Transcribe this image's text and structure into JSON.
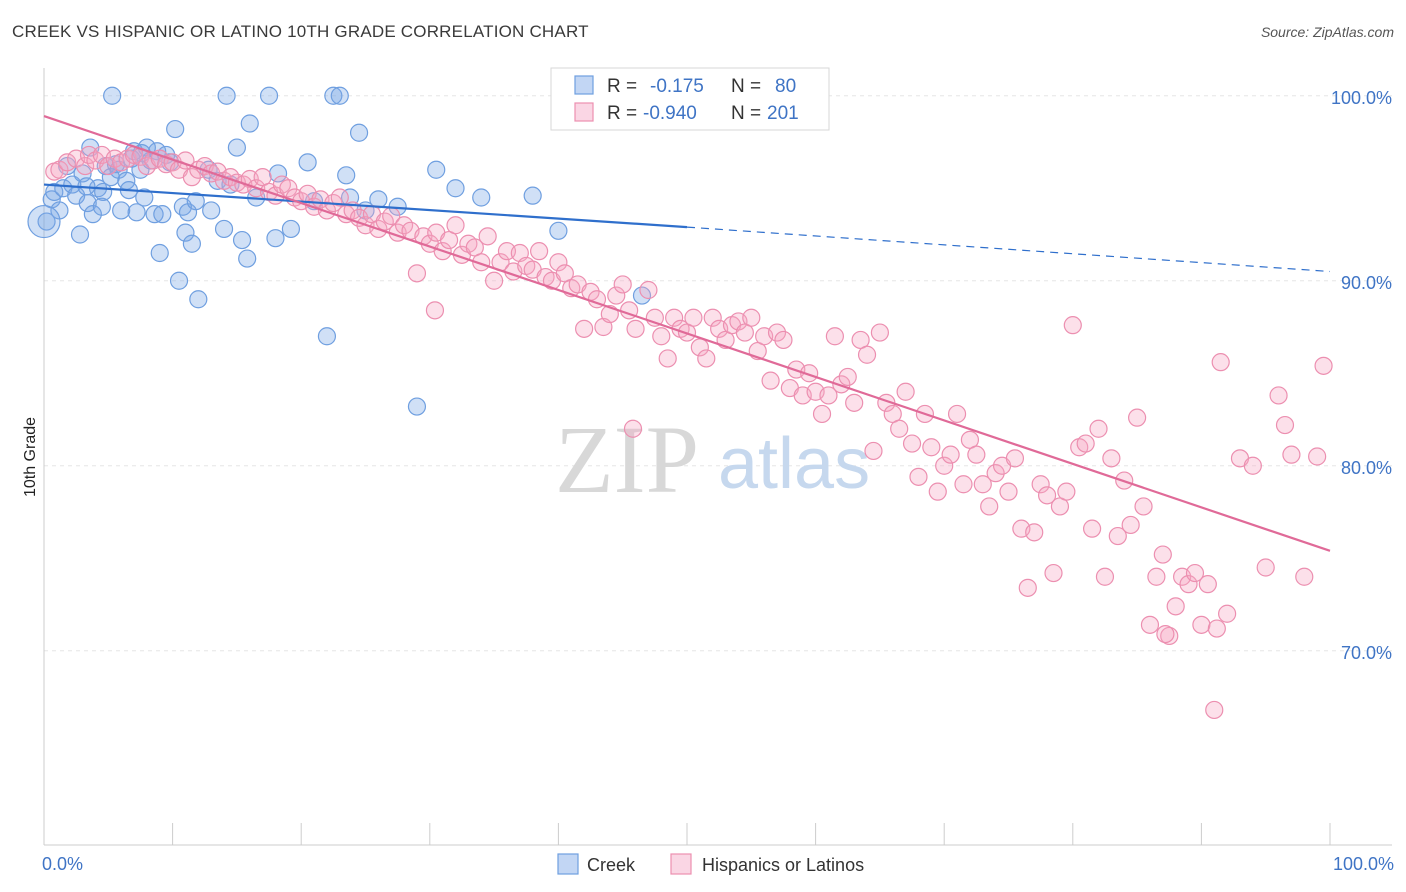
{
  "title": "CREEK VS HISPANIC OR LATINO 10TH GRADE CORRELATION CHART",
  "source": "Source: ZipAtlas.com",
  "watermark": {
    "zip": "ZIP",
    "atlas": "atlas"
  },
  "colors": {
    "creek": "#6f9fe0",
    "creek_fill": "rgba(120,165,230,0.35)",
    "creek_line": "#2f6fcc",
    "hispanic": "#ec8fb0",
    "hispanic_fill": "rgba(245,165,195,0.35)",
    "hispanic_line": "#e06a98",
    "tick_label": "#3f74c5"
  },
  "legend": {
    "rows": [
      {
        "r_label": "R =",
        "r_value": "-0.175",
        "n_label": "N =",
        "n_value": "80"
      },
      {
        "r_label": "R =",
        "r_value": "-0.940",
        "n_label": "N =",
        "n_value": "201"
      }
    ]
  },
  "chart_data": {
    "type": "scatter",
    "title": "CREEK VS HISPANIC OR LATINO 10TH GRADE CORRELATION CHART",
    "xlabel": "",
    "ylabel": "10th Grade",
    "xlim": [
      0,
      100
    ],
    "ylim": [
      59.5,
      101.5
    ],
    "x_tick_labels": [
      "0.0%",
      "100.0%"
    ],
    "y_ticks": [
      70,
      80,
      90,
      100
    ],
    "y_tick_labels": [
      "70.0%",
      "80.0%",
      "90.0%",
      "100.0%"
    ],
    "grid": true,
    "legend_position": "top-center",
    "series": [
      {
        "name": "Creek",
        "R": -0.175,
        "N": 80,
        "trend": {
          "x": [
            0,
            50
          ],
          "y": [
            95.2,
            92.9
          ],
          "dashed_to": [
            100,
            90.5
          ]
        },
        "points": [
          [
            0.2,
            93.2
          ],
          [
            0.6,
            94.4
          ],
          [
            0.8,
            94.8
          ],
          [
            1.2,
            93.8
          ],
          [
            1.5,
            95.0
          ],
          [
            1.8,
            96.2
          ],
          [
            2.2,
            95.2
          ],
          [
            2.5,
            94.6
          ],
          [
            2.8,
            92.5
          ],
          [
            3.0,
            95.8
          ],
          [
            3.4,
            94.2
          ],
          [
            3.6,
            97.2
          ],
          [
            3.8,
            93.6
          ],
          [
            4.2,
            95.0
          ],
          [
            4.5,
            94.0
          ],
          [
            4.6,
            94.8
          ],
          [
            4.8,
            96.2
          ],
          [
            5.2,
            95.6
          ],
          [
            5.3,
            100.0
          ],
          [
            5.6,
            96.3
          ],
          [
            5.8,
            96.0
          ],
          [
            6.0,
            93.8
          ],
          [
            6.4,
            95.4
          ],
          [
            6.6,
            94.9
          ],
          [
            6.8,
            96.6
          ],
          [
            7.0,
            97.0
          ],
          [
            7.2,
            93.7
          ],
          [
            7.5,
            96.0
          ],
          [
            7.8,
            94.5
          ],
          [
            8.0,
            97.2
          ],
          [
            8.3,
            96.5
          ],
          [
            8.6,
            93.6
          ],
          [
            8.8,
            97.0
          ],
          [
            9.0,
            91.5
          ],
          [
            9.2,
            93.6
          ],
          [
            9.5,
            96.8
          ],
          [
            9.8,
            96.4
          ],
          [
            10.2,
            98.2
          ],
          [
            10.5,
            90.0
          ],
          [
            10.8,
            94.0
          ],
          [
            11.0,
            92.6
          ],
          [
            11.2,
            93.7
          ],
          [
            11.5,
            92.0
          ],
          [
            11.8,
            94.3
          ],
          [
            12.0,
            89.0
          ],
          [
            12.8,
            96.0
          ],
          [
            13.0,
            93.8
          ],
          [
            13.5,
            95.4
          ],
          [
            14.0,
            92.8
          ],
          [
            14.2,
            100.0
          ],
          [
            14.5,
            95.2
          ],
          [
            15.0,
            97.2
          ],
          [
            15.4,
            92.2
          ],
          [
            15.8,
            91.2
          ],
          [
            16.0,
            98.5
          ],
          [
            16.5,
            94.5
          ],
          [
            17.5,
            100.0
          ],
          [
            18.0,
            92.3
          ],
          [
            18.2,
            95.8
          ],
          [
            19.2,
            92.8
          ],
          [
            20.5,
            96.4
          ],
          [
            21.0,
            94.3
          ],
          [
            22.0,
            87.0
          ],
          [
            22.5,
            100.0
          ],
          [
            23.0,
            100.0
          ],
          [
            23.5,
            95.7
          ],
          [
            23.8,
            94.5
          ],
          [
            24.5,
            98.0
          ],
          [
            25.0,
            93.8
          ],
          [
            26.0,
            94.4
          ],
          [
            27.5,
            94.0
          ],
          [
            29.0,
            83.2
          ],
          [
            30.5,
            96.0
          ],
          [
            32.0,
            95.0
          ],
          [
            34.0,
            94.5
          ],
          [
            38.0,
            94.6
          ],
          [
            40.0,
            92.7
          ],
          [
            46.5,
            89.2
          ],
          [
            3.3,
            95.1
          ],
          [
            7.6,
            96.9
          ]
        ]
      },
      {
        "name": "Hispanics or Latinos",
        "R": -0.94,
        "N": 201,
        "trend": {
          "x": [
            0,
            100
          ],
          "y": [
            98.9,
            75.4
          ]
        },
        "points": [
          [
            0.8,
            95.9
          ],
          [
            1.2,
            96.0
          ],
          [
            1.8,
            96.4
          ],
          [
            2.5,
            96.6
          ],
          [
            3.2,
            96.2
          ],
          [
            3.5,
            96.8
          ],
          [
            4.0,
            96.5
          ],
          [
            4.5,
            96.8
          ],
          [
            5.0,
            96.2
          ],
          [
            5.5,
            96.6
          ],
          [
            6.0,
            96.4
          ],
          [
            6.5,
            96.6
          ],
          [
            7.0,
            96.8
          ],
          [
            7.5,
            96.7
          ],
          [
            8.0,
            96.2
          ],
          [
            8.5,
            96.5
          ],
          [
            9.0,
            96.6
          ],
          [
            9.5,
            96.3
          ],
          [
            10.0,
            96.4
          ],
          [
            10.5,
            96.0
          ],
          [
            11.0,
            96.5
          ],
          [
            11.5,
            95.6
          ],
          [
            12.0,
            96.0
          ],
          [
            12.5,
            96.2
          ],
          [
            13.0,
            95.8
          ],
          [
            13.5,
            95.9
          ],
          [
            14.0,
            95.4
          ],
          [
            14.5,
            95.6
          ],
          [
            15.0,
            95.3
          ],
          [
            15.5,
            95.2
          ],
          [
            16.0,
            95.5
          ],
          [
            16.5,
            95.0
          ],
          [
            17.0,
            95.6
          ],
          [
            17.5,
            94.8
          ],
          [
            18.0,
            94.6
          ],
          [
            18.5,
            95.2
          ],
          [
            19.0,
            95.0
          ],
          [
            19.5,
            94.5
          ],
          [
            20.0,
            94.3
          ],
          [
            20.5,
            94.7
          ],
          [
            21.0,
            94.0
          ],
          [
            21.5,
            94.4
          ],
          [
            22.0,
            93.8
          ],
          [
            22.5,
            94.2
          ],
          [
            23.0,
            94.5
          ],
          [
            23.5,
            93.6
          ],
          [
            24.0,
            93.8
          ],
          [
            24.5,
            93.4
          ],
          [
            25.0,
            93.0
          ],
          [
            25.5,
            93.6
          ],
          [
            26.0,
            92.8
          ],
          [
            26.5,
            93.2
          ],
          [
            27.0,
            93.5
          ],
          [
            27.5,
            92.6
          ],
          [
            28.0,
            93.0
          ],
          [
            28.5,
            92.7
          ],
          [
            29.0,
            90.4
          ],
          [
            29.5,
            92.4
          ],
          [
            30.0,
            92.0
          ],
          [
            30.5,
            92.6
          ],
          [
            31.0,
            91.6
          ],
          [
            31.5,
            92.2
          ],
          [
            32.0,
            93.0
          ],
          [
            32.5,
            91.4
          ],
          [
            33.0,
            92.0
          ],
          [
            33.5,
            91.8
          ],
          [
            34.0,
            91.0
          ],
          [
            34.5,
            92.4
          ],
          [
            35.0,
            90.0
          ],
          [
            35.5,
            91.0
          ],
          [
            36.0,
            91.6
          ],
          [
            36.5,
            90.5
          ],
          [
            37.0,
            91.5
          ],
          [
            37.5,
            90.8
          ],
          [
            38.0,
            90.6
          ],
          [
            38.5,
            91.6
          ],
          [
            39.0,
            90.2
          ],
          [
            39.5,
            90.0
          ],
          [
            40.0,
            91.0
          ],
          [
            40.5,
            90.4
          ],
          [
            41.0,
            89.6
          ],
          [
            41.5,
            89.8
          ],
          [
            42.0,
            87.4
          ],
          [
            42.5,
            89.4
          ],
          [
            43.0,
            89.0
          ],
          [
            43.5,
            87.5
          ],
          [
            44.0,
            88.2
          ],
          [
            44.5,
            89.2
          ],
          [
            45.0,
            89.8
          ],
          [
            45.5,
            88.4
          ],
          [
            46.0,
            87.4
          ],
          [
            47.0,
            89.5
          ],
          [
            47.5,
            88.0
          ],
          [
            48.0,
            87.0
          ],
          [
            48.5,
            85.8
          ],
          [
            49.0,
            88.0
          ],
          [
            49.5,
            87.4
          ],
          [
            50.0,
            87.2
          ],
          [
            50.5,
            88.0
          ],
          [
            51.0,
            86.4
          ],
          [
            51.5,
            85.8
          ],
          [
            52.0,
            88.0
          ],
          [
            52.5,
            87.4
          ],
          [
            53.0,
            86.8
          ],
          [
            53.5,
            87.6
          ],
          [
            54.0,
            87.8
          ],
          [
            54.5,
            87.2
          ],
          [
            55.0,
            88.0
          ],
          [
            55.5,
            86.2
          ],
          [
            56.0,
            87.0
          ],
          [
            56.5,
            84.6
          ],
          [
            57.0,
            87.2
          ],
          [
            57.5,
            86.8
          ],
          [
            58.0,
            84.2
          ],
          [
            58.5,
            85.2
          ],
          [
            59.0,
            83.8
          ],
          [
            59.5,
            85.0
          ],
          [
            60.0,
            84.0
          ],
          [
            60.5,
            82.8
          ],
          [
            61.0,
            83.8
          ],
          [
            61.5,
            87.0
          ],
          [
            62.0,
            84.4
          ],
          [
            62.5,
            84.8
          ],
          [
            63.0,
            83.4
          ],
          [
            63.5,
            86.8
          ],
          [
            64.0,
            86.0
          ],
          [
            64.5,
            80.8
          ],
          [
            65.0,
            87.2
          ],
          [
            65.5,
            83.4
          ],
          [
            66.0,
            82.8
          ],
          [
            66.5,
            82.0
          ],
          [
            67.0,
            84.0
          ],
          [
            67.5,
            81.2
          ],
          [
            68.0,
            79.4
          ],
          [
            68.5,
            82.8
          ],
          [
            69.0,
            81.0
          ],
          [
            69.5,
            78.6
          ],
          [
            70.0,
            80.0
          ],
          [
            70.5,
            80.6
          ],
          [
            71.0,
            82.8
          ],
          [
            71.5,
            79.0
          ],
          [
            72.0,
            81.4
          ],
          [
            72.5,
            80.6
          ],
          [
            73.0,
            79.0
          ],
          [
            73.5,
            77.8
          ],
          [
            74.0,
            79.6
          ],
          [
            74.5,
            80.0
          ],
          [
            75.0,
            78.6
          ],
          [
            75.5,
            80.4
          ],
          [
            76.0,
            76.6
          ],
          [
            76.5,
            73.4
          ],
          [
            77.0,
            76.4
          ],
          [
            77.5,
            79.0
          ],
          [
            78.0,
            78.4
          ],
          [
            78.5,
            74.2
          ],
          [
            79.0,
            77.8
          ],
          [
            79.5,
            78.6
          ],
          [
            80.0,
            87.6
          ],
          [
            80.5,
            81.0
          ],
          [
            81.0,
            81.2
          ],
          [
            81.5,
            76.6
          ],
          [
            82.0,
            82.0
          ],
          [
            82.5,
            74.0
          ],
          [
            83.0,
            80.4
          ],
          [
            83.5,
            76.2
          ],
          [
            84.0,
            79.2
          ],
          [
            84.5,
            76.8
          ],
          [
            85.0,
            82.6
          ],
          [
            85.5,
            77.8
          ],
          [
            86.0,
            71.4
          ],
          [
            86.5,
            74.0
          ],
          [
            87.0,
            75.2
          ],
          [
            87.5,
            70.8
          ],
          [
            88.0,
            72.4
          ],
          [
            88.5,
            74.0
          ],
          [
            89.0,
            73.6
          ],
          [
            89.5,
            74.2
          ],
          [
            90.0,
            71.4
          ],
          [
            90.5,
            73.6
          ],
          [
            91.0,
            66.8
          ],
          [
            91.5,
            85.6
          ],
          [
            92.0,
            72.0
          ],
          [
            93.0,
            80.4
          ],
          [
            94.0,
            80.0
          ],
          [
            95.0,
            74.5
          ],
          [
            96.0,
            83.8
          ],
          [
            97.0,
            80.6
          ],
          [
            98.0,
            74.0
          ],
          [
            99.0,
            80.5
          ],
          [
            99.5,
            85.4
          ],
          [
            96.5,
            82.2
          ],
          [
            87.2,
            70.9
          ],
          [
            91.2,
            71.2
          ],
          [
            45.8,
            82.0
          ],
          [
            30.4,
            88.4
          ]
        ]
      }
    ]
  },
  "bottom_legend": {
    "items": [
      "Creek",
      "Hispanics or Latinos"
    ]
  }
}
